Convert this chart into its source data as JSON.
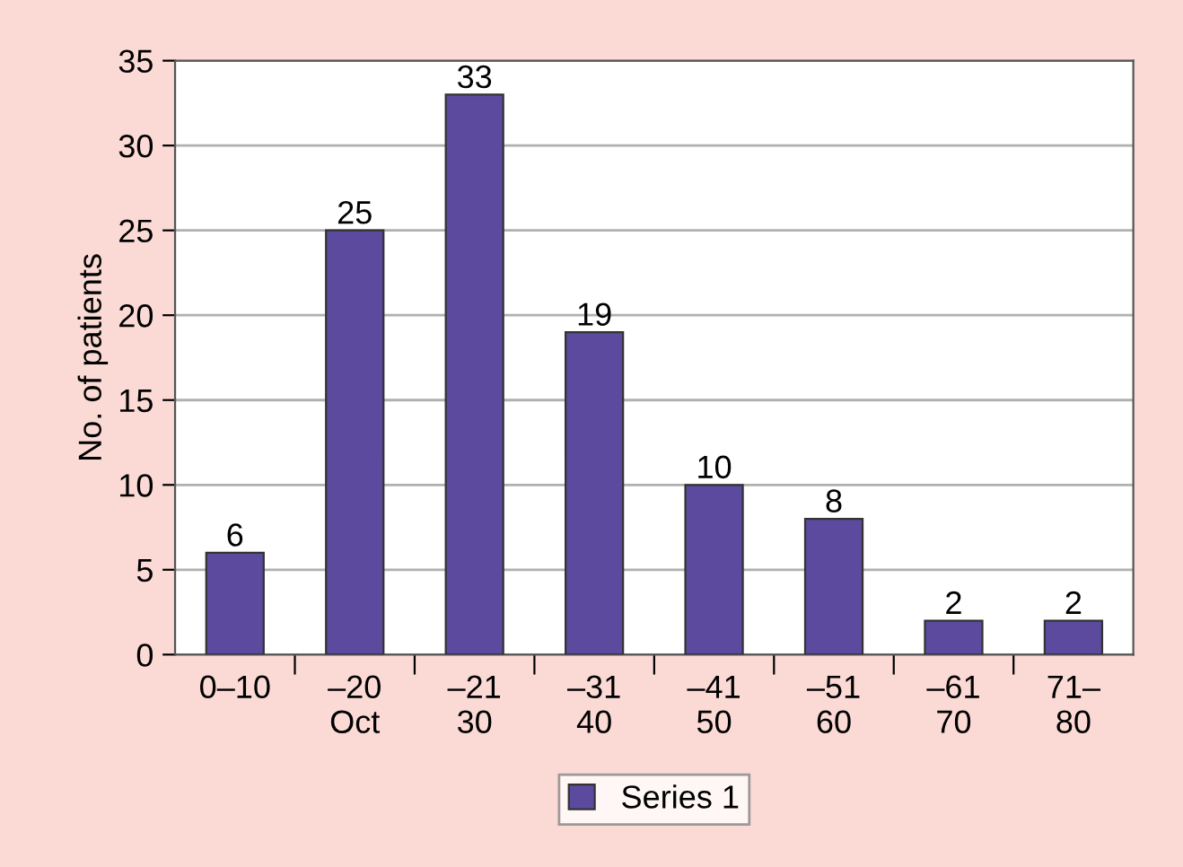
{
  "chart_data": {
    "type": "bar",
    "ylabel": "No. of patients",
    "categories": [
      "0–10",
      "–20\nOct",
      "–21\n30",
      "–31\n40",
      "–41\n50",
      "–51\n60",
      "–61\n70",
      "71–\n80"
    ],
    "series": [
      {
        "name": "Series 1",
        "color": "#5b4a9e",
        "values": [
          6,
          25,
          33,
          19,
          10,
          8,
          2,
          2
        ]
      }
    ],
    "ylim": [
      0,
      35
    ],
    "yticks": [
      0,
      5,
      10,
      15,
      20,
      25,
      30,
      35
    ],
    "grid": "y",
    "legend": "bottom",
    "data_labels": true
  }
}
